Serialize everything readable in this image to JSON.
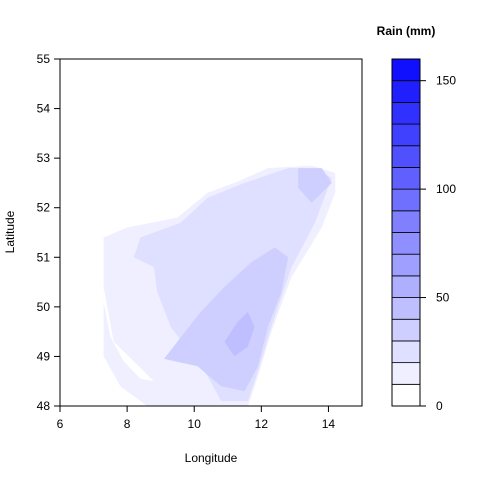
{
  "chart_data": {
    "type": "heatmap",
    "title": "",
    "xlabel": "Longitude",
    "ylabel": "Latitude",
    "xlim": [
      6,
      15
    ],
    "ylim": [
      48,
      55
    ],
    "x_ticks": [
      6,
      8,
      10,
      12,
      14
    ],
    "y_ticks": [
      48,
      49,
      50,
      51,
      52,
      53,
      54,
      55
    ],
    "grid": false,
    "legend": {
      "title": "Rain (mm)",
      "placement": "right",
      "min": 0,
      "max": 160,
      "step": 10,
      "ticks": [
        0,
        50,
        100,
        150
      ],
      "color_low": "#ffffff",
      "color_high": "#0000ff"
    },
    "regions": [
      {
        "level": 10,
        "outline": [
          [
            7.3,
            51.4
          ],
          [
            8.0,
            51.6
          ],
          [
            9.5,
            51.8
          ],
          [
            10.4,
            52.3
          ],
          [
            11.2,
            52.5
          ],
          [
            12.2,
            52.8
          ],
          [
            13.5,
            52.85
          ],
          [
            14.2,
            52.7
          ],
          [
            14.2,
            52.3
          ],
          [
            13.8,
            51.6
          ],
          [
            12.9,
            50.6
          ],
          [
            12.3,
            49.5
          ],
          [
            11.9,
            48.6
          ],
          [
            11.6,
            48.0
          ],
          [
            8.6,
            48.0
          ],
          [
            7.8,
            48.4
          ],
          [
            7.3,
            49.0
          ]
        ]
      },
      {
        "level": 0,
        "outline": [
          [
            7.3,
            50.4
          ],
          [
            7.6,
            49.3
          ],
          [
            8.2,
            48.9
          ],
          [
            8.8,
            48.5
          ],
          [
            8.4,
            48.55
          ],
          [
            7.9,
            48.9
          ],
          [
            7.5,
            49.4
          ],
          [
            7.3,
            50.1
          ]
        ]
      },
      {
        "level": 20,
        "outline": [
          [
            8.4,
            51.4
          ],
          [
            9.6,
            51.7
          ],
          [
            10.4,
            52.2
          ],
          [
            11.5,
            52.5
          ],
          [
            12.8,
            52.8
          ],
          [
            13.6,
            52.8
          ],
          [
            14.1,
            52.6
          ],
          [
            13.6,
            51.7
          ],
          [
            12.9,
            50.8
          ],
          [
            12.3,
            49.6
          ],
          [
            11.9,
            48.7
          ],
          [
            11.6,
            48.1
          ],
          [
            10.8,
            48.1
          ],
          [
            10.4,
            48.6
          ],
          [
            9.3,
            49.6
          ],
          [
            8.9,
            50.3
          ],
          [
            8.8,
            50.8
          ],
          [
            8.2,
            51.0
          ]
        ]
      },
      {
        "level": 30,
        "outline": [
          [
            9.1,
            48.95
          ],
          [
            9.5,
            49.3
          ],
          [
            10.2,
            49.9
          ],
          [
            10.9,
            50.4
          ],
          [
            11.7,
            50.9
          ],
          [
            12.4,
            51.2
          ],
          [
            12.8,
            51.0
          ],
          [
            12.6,
            50.3
          ],
          [
            12.2,
            49.6
          ],
          [
            11.9,
            48.8
          ],
          [
            11.5,
            48.3
          ],
          [
            10.8,
            48.4
          ],
          [
            10.1,
            48.8
          ]
        ]
      },
      {
        "level": 40,
        "outline": [
          [
            10.9,
            49.3
          ],
          [
            11.3,
            49.7
          ],
          [
            11.6,
            49.9
          ],
          [
            11.8,
            49.6
          ],
          [
            11.6,
            49.2
          ],
          [
            11.2,
            49.0
          ]
        ]
      },
      {
        "level": 30,
        "outline": [
          [
            13.1,
            52.8
          ],
          [
            13.8,
            52.8
          ],
          [
            14.1,
            52.5
          ],
          [
            13.5,
            52.1
          ],
          [
            13.1,
            52.4
          ]
        ]
      }
    ]
  }
}
